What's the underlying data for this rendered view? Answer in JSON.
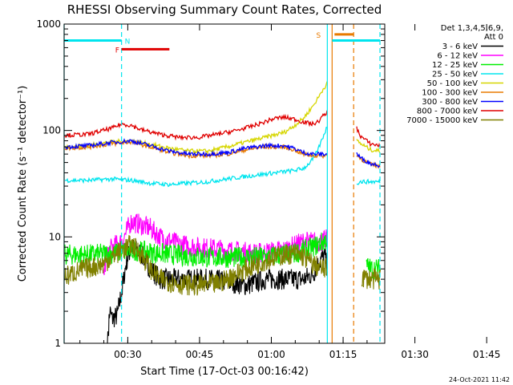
{
  "chart_data": {
    "type": "line",
    "title": "RHESSI Observing Summary Count Rates, Corrected",
    "xlabel": "Start Time (17-Oct-03 00:16:42)",
    "ylabel": "Corrected Count Rate (s⁻¹ detector⁻¹)",
    "y_scale": "log",
    "ylim": [
      1,
      1000
    ],
    "xlim_minutes": [
      0,
      67
    ],
    "x_ticks": [
      {
        "label": "00:30",
        "value": 13.3
      },
      {
        "label": "00:45",
        "value": 28.3
      },
      {
        "label": "01:00",
        "value": 43.3
      },
      {
        "label": "01:15",
        "value": 58.3
      },
      {
        "label": "01:30",
        "value": 73.3
      },
      {
        "label": "01:45",
        "value": 88.3
      }
    ],
    "y_ticks": [
      {
        "label": "1",
        "value": 1
      },
      {
        "label": "10",
        "value": 10
      },
      {
        "label": "100",
        "value": 100
      },
      {
        "label": "1000",
        "value": 1000
      }
    ],
    "legend": {
      "placement": "right",
      "header": [
        "Det 1,3,4,5,6,9,",
        "Att 0"
      ]
    },
    "data_gaps": [
      [
        -0.5,
        0
      ],
      [
        66,
        67
      ]
    ],
    "markers": [
      {
        "label": "N",
        "color": "#00e5ee",
        "x": 12,
        "y": 700
      },
      {
        "label": "F",
        "color": "#e00000",
        "x": 10,
        "y": 580
      },
      {
        "label": "S",
        "color": "#e87a00",
        "x": 52,
        "y": 800
      }
    ],
    "bars": [
      {
        "color": "#00e5ee",
        "x0": 0,
        "x1": 12,
        "y": 700
      },
      {
        "color": "#00e5ee",
        "x0": 56,
        "x1": 66,
        "y": 700
      },
      {
        "color": "#e00000",
        "x0": 12,
        "x1": 22,
        "y": 580
      },
      {
        "color": "#e87a00",
        "x0": 56.5,
        "x1": 60.5,
        "y": 800
      }
    ],
    "vlines": [
      {
        "x": 0,
        "color": "#00e5ee",
        "style": "solid"
      },
      {
        "x": 12,
        "color": "#00e5ee",
        "style": "dashed"
      },
      {
        "x": 55,
        "color": "#00e5ee",
        "style": "solid"
      },
      {
        "x": 56,
        "color": "#e87a00",
        "style": "solid"
      },
      {
        "x": 60.5,
        "color": "#e87a00",
        "style": "dashed"
      },
      {
        "x": 66,
        "color": "#00e5ee",
        "style": "dashed"
      }
    ],
    "series": [
      {
        "name": "3 - 6 keV",
        "color": "#000000",
        "x": [
          0,
          8,
          9,
          9.5,
          10,
          11,
          12,
          13,
          14,
          16,
          18,
          20,
          23,
          26,
          30,
          34,
          38,
          42,
          46,
          50,
          52,
          53,
          54,
          54.5,
          55,
          56,
          57,
          58,
          59,
          60,
          61,
          62,
          63,
          64,
          65,
          66
        ],
        "y": [
          null,
          null,
          1,
          2,
          1.7,
          1.8,
          3,
          6,
          8,
          7,
          5,
          4,
          4,
          4,
          4,
          3.8,
          3.5,
          4,
          4,
          4,
          4.5,
          5.5,
          6.5,
          6.5,
          5,
          null,
          null,
          null,
          null,
          null,
          null,
          null,
          null,
          null,
          null,
          null
        ]
      },
      {
        "name": "6 - 12 keV",
        "color": "#ff00ff",
        "x": [
          0,
          7,
          8,
          9,
          10,
          12,
          14,
          16,
          18,
          20,
          24,
          28,
          34,
          40,
          46,
          50,
          54,
          55,
          59,
          60,
          62,
          64,
          66
        ],
        "y": [
          null,
          null,
          4,
          7,
          8,
          9,
          14,
          13,
          12,
          10,
          8.5,
          8,
          7.5,
          7,
          7.5,
          9,
          9,
          9.5,
          null,
          null,
          null,
          null,
          null
        ]
      },
      {
        "name": "12 - 25 keV",
        "color": "#00ee00",
        "x": [
          0,
          5,
          10,
          14,
          20,
          26,
          30,
          36,
          42,
          48,
          50,
          52,
          55,
          56,
          59,
          60,
          62,
          63,
          64,
          65,
          66
        ],
        "y": [
          6.8,
          6.8,
          7,
          7.5,
          7,
          6.6,
          6.4,
          6.4,
          6.5,
          7,
          7.5,
          8,
          9.5,
          null,
          null,
          null,
          null,
          5.5,
          5,
          5,
          5
        ]
      },
      {
        "name": "25 - 50 keV",
        "color": "#00e5ee",
        "x": [
          0,
          5,
          10,
          14,
          18,
          22,
          26,
          30,
          34,
          38,
          42,
          46,
          48,
          50,
          51,
          52,
          53,
          54,
          55,
          56,
          60,
          61,
          62,
          64,
          66
        ],
        "y": [
          34,
          34,
          35,
          34,
          32,
          31,
          32,
          33,
          35,
          37,
          39,
          41,
          42,
          44,
          48,
          54,
          65,
          85,
          110,
          null,
          null,
          32,
          33,
          33,
          33
        ]
      },
      {
        "name": "50 - 100 keV",
        "color": "#d6d600",
        "x": [
          0,
          5,
          10,
          14,
          18,
          22,
          26,
          30,
          34,
          38,
          42,
          46,
          48,
          50,
          52,
          53,
          54,
          55,
          56,
          60,
          61,
          62,
          64,
          66
        ],
        "y": [
          70,
          72,
          78,
          80,
          74,
          68,
          64,
          64,
          70,
          78,
          86,
          96,
          110,
          130,
          170,
          200,
          240,
          280,
          null,
          null,
          82,
          75,
          66,
          64
        ]
      },
      {
        "name": "100 - 300 keV",
        "color": "#e87a00",
        "x": [
          0,
          5,
          10,
          14,
          18,
          22,
          26,
          30,
          34,
          38,
          42,
          46,
          48,
          50,
          52,
          54,
          55,
          56,
          60,
          61,
          62,
          64,
          66
        ],
        "y": [
          68,
          70,
          75,
          78,
          70,
          62,
          58,
          58,
          60,
          66,
          70,
          70,
          66,
          60,
          58,
          58,
          58,
          null,
          null,
          60,
          54,
          48,
          46
        ]
      },
      {
        "name": "300 - 800 keV",
        "color": "#0000ff",
        "x": [
          0,
          5,
          10,
          14,
          18,
          22,
          26,
          30,
          34,
          38,
          42,
          46,
          48,
          50,
          52,
          54,
          55,
          56,
          60,
          61,
          62,
          64,
          66
        ],
        "y": [
          70,
          72,
          77,
          80,
          72,
          64,
          60,
          60,
          62,
          68,
          72,
          72,
          68,
          62,
          60,
          60,
          60,
          null,
          null,
          62,
          55,
          49,
          47
        ]
      },
      {
        "name": "800 - 7000 keV",
        "color": "#e00000",
        "x": [
          0,
          5,
          10,
          12,
          14,
          16,
          20,
          24,
          28,
          32,
          36,
          40,
          44,
          46,
          48,
          50,
          52,
          53,
          54,
          55,
          56,
          60,
          61,
          62,
          64,
          66
        ],
        "y": [
          90,
          92,
          105,
          115,
          112,
          102,
          92,
          86,
          86,
          92,
          100,
          112,
          130,
          133,
          128,
          120,
          115,
          120,
          135,
          150,
          null,
          null,
          108,
          88,
          75,
          72
        ]
      },
      {
        "name": "7000 - 15000 keV",
        "color": "#808000",
        "x": [
          0,
          4,
          8,
          10,
          12,
          14,
          16,
          18,
          20,
          24,
          28,
          32,
          36,
          40,
          44,
          48,
          50,
          52,
          54,
          55,
          56,
          60,
          62,
          64,
          66
        ],
        "y": [
          4.2,
          5,
          5.5,
          6.5,
          7.5,
          8.5,
          7,
          5,
          4,
          3.6,
          3.5,
          3.6,
          4.5,
          5.5,
          6.5,
          7,
          6.5,
          5.5,
          5,
          5,
          null,
          null,
          4.2,
          4,
          4
        ]
      }
    ]
  },
  "footer": {
    "date_stamp": "24-Oct-2021 11:42"
  }
}
